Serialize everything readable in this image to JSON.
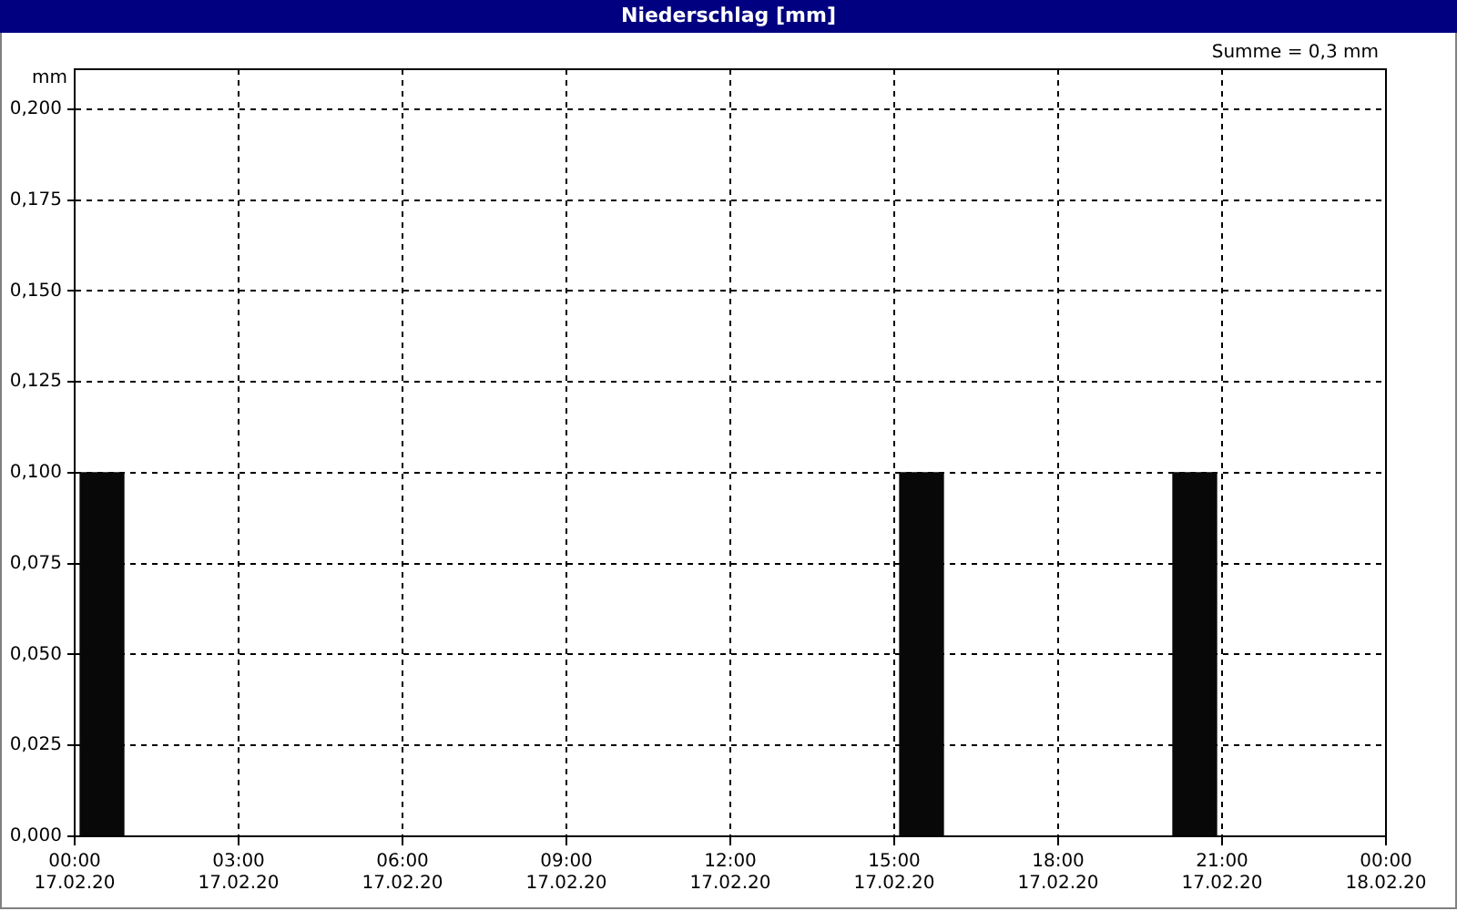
{
  "chart_data": {
    "type": "bar",
    "title": "Niederschlag [mm]",
    "ylabel": "mm",
    "annotations": [
      "Summe = 0,3 mm"
    ],
    "x": [
      "--02-17T00:30",
      "--02-17T15:30",
      "--02-17T20:30"
    ],
    "values": [
      0.1,
      0.1,
      0.1
    ],
    "color": "#080808",
    "xlim": [
      "--02-17T00:00",
      "--02-18T00:00"
    ],
    "xticks": [
      {
        "value": "--02-17T00:00",
        "label": "00:00 17.02.20"
      },
      {
        "value": "--02-17T03:00",
        "label": "03:00 17.02.20"
      },
      {
        "value": "--02-17T06:00",
        "label": "06:00 17.02.20"
      },
      {
        "value": "--02-17T09:00",
        "label": "09:00 17.02.20"
      },
      {
        "value": "--02-17T12:00",
        "label": "12:00 17.02.20"
      },
      {
        "value": "--02-17T15:00",
        "label": "15:00 17.02.20"
      },
      {
        "value": "--02-17T18:00",
        "label": "18:00 17.02.20"
      },
      {
        "value": "--02-17T21:00",
        "label": "21:00 17.02.20"
      },
      {
        "value": "--02-18T00:00",
        "label": "00:00 18.02.20"
      }
    ],
    "ylim": [
      0,
      0.211
    ],
    "yticks": [
      {
        "value": 0,
        "label": "0,000"
      },
      {
        "value": 0.025,
        "label": "0,025"
      },
      {
        "value": 0.05,
        "label": "0,050"
      },
      {
        "value": 0.075,
        "label": "0,075"
      },
      {
        "value": 0.1,
        "label": "0,100"
      },
      {
        "value": 0.125,
        "label": "0,125"
      },
      {
        "value": 0.15,
        "label": "0,150"
      },
      {
        "value": 0.175,
        "label": "0,175"
      },
      {
        "value": 0.2,
        "label": "0,200"
      }
    ],
    "grid": true,
    "legend": false
  }
}
